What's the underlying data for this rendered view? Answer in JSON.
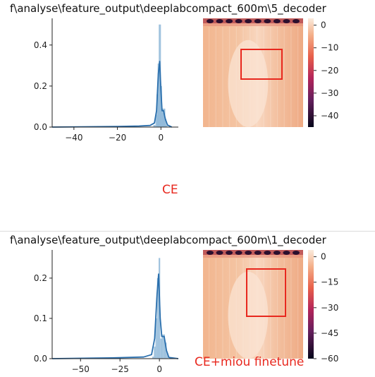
{
  "panels": [
    {
      "title": "f\\analyse\\feature_output\\deeplabcompact_600m\\5_decoder",
      "caption": "CE",
      "chart_data": [
        {
          "type": "histogram-kde",
          "xlim": [
            -50,
            8
          ],
          "ylim": [
            0,
            0.53
          ],
          "xticks": [
            -40,
            -20,
            0
          ],
          "xtick_labels": [
            "−40",
            "−20",
            "0"
          ],
          "yticks": [
            0.0,
            0.2,
            0.4
          ],
          "ytick_labels": [
            "0.0",
            "0.2",
            "0.4"
          ],
          "bins": [
            {
              "x": -3.0,
              "v": 0.01
            },
            {
              "x": -2.0,
              "v": 0.06
            },
            {
              "x": -1.5,
              "v": 0.16
            },
            {
              "x": -1.0,
              "v": 0.31
            },
            {
              "x": -0.5,
              "v": 0.5
            },
            {
              "x": 0.0,
              "v": 0.2
            },
            {
              "x": 0.5,
              "v": 0.09
            },
            {
              "x": 1.0,
              "v": 0.07
            },
            {
              "x": 1.5,
              "v": 0.09
            },
            {
              "x": 2.0,
              "v": 0.04
            },
            {
              "x": 2.5,
              "v": 0.01
            }
          ],
          "kde": [
            [
              -50,
              0.0
            ],
            [
              -20,
              0.003
            ],
            [
              -10,
              0.005
            ],
            [
              -5,
              0.008
            ],
            [
              -3,
              0.02
            ],
            [
              -2,
              0.08
            ],
            [
              -1.2,
              0.26
            ],
            [
              -0.6,
              0.32
            ],
            [
              0,
              0.18
            ],
            [
              0.5,
              0.08
            ],
            [
              1.2,
              0.08
            ],
            [
              2.0,
              0.04
            ],
            [
              3.0,
              0.01
            ],
            [
              5,
              0.0
            ]
          ]
        },
        {
          "type": "heatmap",
          "colorbar_ticks": [
            0,
            -10,
            -20,
            -30,
            -40
          ],
          "colorbar_tick_labels": [
            "0",
            "−10",
            "−20",
            "−30",
            "−40"
          ],
          "colorbar_range": [
            -45,
            3
          ],
          "highlight_box": true
        }
      ]
    },
    {
      "title": "f\\analyse\\feature_output\\deeplabcompact_600m\\1_decoder",
      "caption": "CE+miou finetune",
      "chart_data": [
        {
          "type": "histogram-kde",
          "xlim": [
            -68,
            12
          ],
          "ylim": [
            0,
            0.27
          ],
          "xticks": [
            -50,
            -25,
            0
          ],
          "xtick_labels": [
            "−50",
            "−25",
            "0"
          ],
          "yticks": [
            0.0,
            0.1,
            0.2
          ],
          "ytick_labels": [
            "0.0",
            "0.1",
            "0.2"
          ],
          "bins": [
            {
              "x": -4.0,
              "v": 0.005
            },
            {
              "x": -3.0,
              "v": 0.03
            },
            {
              "x": -2.0,
              "v": 0.1
            },
            {
              "x": -1.0,
              "v": 0.2
            },
            {
              "x": 0.0,
              "v": 0.25
            },
            {
              "x": 1.0,
              "v": 0.05
            },
            {
              "x": 2.0,
              "v": 0.06
            },
            {
              "x": 3.0,
              "v": 0.06
            },
            {
              "x": 4.0,
              "v": 0.04
            },
            {
              "x": 5.0,
              "v": 0.015
            }
          ],
          "kde": [
            [
              -68,
              0.0
            ],
            [
              -30,
              0.002
            ],
            [
              -10,
              0.004
            ],
            [
              -5,
              0.01
            ],
            [
              -3,
              0.05
            ],
            [
              -1.5,
              0.16
            ],
            [
              -0.5,
              0.21
            ],
            [
              0.5,
              0.1
            ],
            [
              1.5,
              0.055
            ],
            [
              3.0,
              0.055
            ],
            [
              4.5,
              0.02
            ],
            [
              6,
              0.003
            ],
            [
              12,
              0.0
            ]
          ]
        },
        {
          "type": "heatmap",
          "colorbar_ticks": [
            0,
            -15,
            -30,
            -45,
            -60
          ],
          "colorbar_tick_labels": [
            "0",
            "−15",
            "−30",
            "−45",
            "−60"
          ],
          "colorbar_range": [
            -60,
            4
          ],
          "highlight_box": true
        }
      ]
    }
  ],
  "colors": {
    "hist": "#8fb8d8",
    "kde": "#2a6fad",
    "highlight": "#e8281e",
    "caption": "#e8281e"
  }
}
